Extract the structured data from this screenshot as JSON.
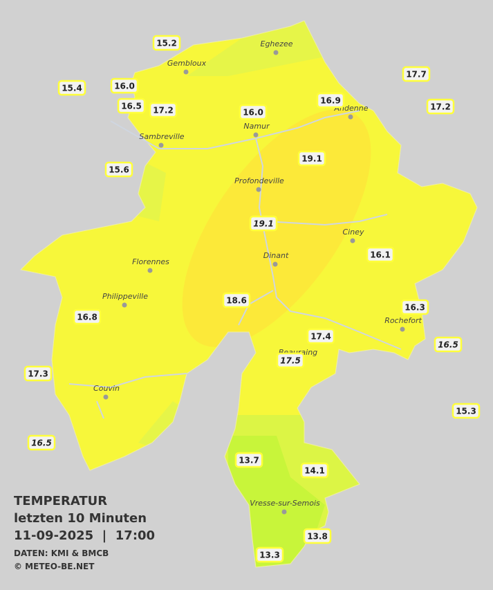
{
  "header": {
    "title": "TEMPERATUR",
    "subtitle": "letzten 10 Minuten",
    "datetime": "11-09-2025  |  17:00",
    "source": "DATEN: KMI & BMCB",
    "copyright": "© METEO-BE.NET"
  },
  "cities": [
    "Eghezee",
    "Gembloux",
    "Andenne",
    "Namur",
    "Sambreville",
    "Profondeville",
    "Ciney",
    "Florennes",
    "Dinant",
    "Philippeville",
    "Rochefort",
    "Beauraing",
    "Couvin",
    "Vresse-sur-Semois"
  ],
  "stations": [
    "15.2",
    "15.4",
    "16.0",
    "16.5",
    "17.2",
    "16.0",
    "16.9",
    "17.7",
    "17.2",
    "19.1",
    "15.6",
    "19.1",
    "16.1",
    "18.6",
    "16.3",
    "16.8",
    "17.4",
    "16.5",
    "17.5",
    "17.3",
    "15.3",
    "16.5",
    "13.7",
    "14.1",
    "13.8",
    "13.3"
  ]
}
